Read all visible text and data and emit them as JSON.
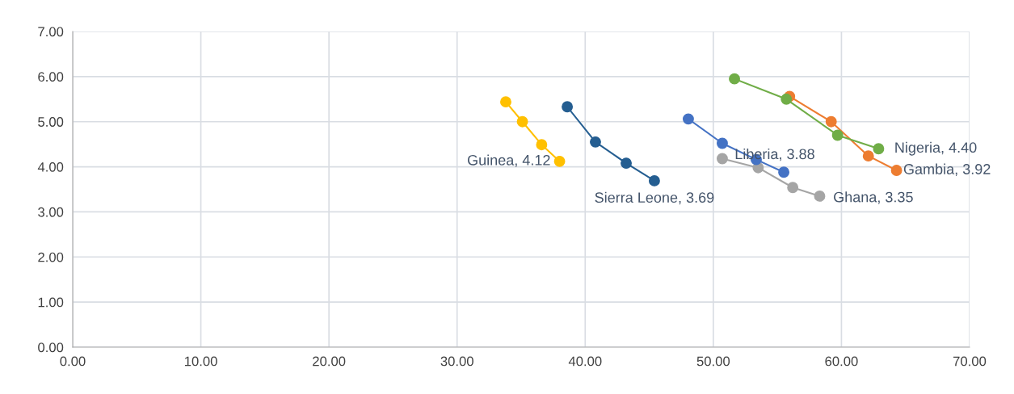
{
  "chart_data": {
    "type": "line",
    "marker": "circle",
    "grid": true,
    "xlim": [
      0,
      70
    ],
    "ylim": [
      0,
      7
    ],
    "xticks": [
      {
        "value": 0,
        "label": "0.00"
      },
      {
        "value": 10,
        "label": "10.00"
      },
      {
        "value": 20,
        "label": "20.00"
      },
      {
        "value": 30,
        "label": "30.00"
      },
      {
        "value": 40,
        "label": "40.00"
      },
      {
        "value": 50,
        "label": "50.00"
      },
      {
        "value": 60,
        "label": "60.00"
      },
      {
        "value": 70,
        "label": "70.00"
      }
    ],
    "yticks": [
      {
        "value": 0,
        "label": "0.00"
      },
      {
        "value": 1,
        "label": "1.00"
      },
      {
        "value": 2,
        "label": "2.00"
      },
      {
        "value": 3,
        "label": "3.00"
      },
      {
        "value": 4,
        "label": "4.00"
      },
      {
        "value": 5,
        "label": "5.00"
      },
      {
        "value": 6,
        "label": "6.00"
      },
      {
        "value": 7,
        "label": "7.00"
      }
    ],
    "series": [
      {
        "color": "#ffc000",
        "x": [
          33.8,
          35.1,
          36.6,
          38.0
        ],
        "values": [
          5.44,
          5.0,
          4.49,
          4.12
        ],
        "value_labels": [
          null,
          null,
          null,
          "Guinea, 4.12"
        ]
      },
      {
        "color": "#255e91",
        "x": [
          38.6,
          40.8,
          43.2,
          45.4
        ],
        "values": [
          5.33,
          4.55,
          4.08,
          3.69
        ],
        "value_labels": [
          null,
          null,
          null,
          "Sierra Leone, 3.69"
        ]
      },
      {
        "color": "#4472c4",
        "x": [
          48.05,
          50.7,
          53.35,
          55.5
        ],
        "values": [
          5.06,
          4.52,
          4.16,
          3.88
        ],
        "value_labels": [
          null,
          null,
          null,
          "Liberia, 3.88"
        ]
      },
      {
        "color": "#a5a5a5",
        "x": [
          50.7,
          53.5,
          56.2,
          58.3
        ],
        "values": [
          4.18,
          3.98,
          3.54,
          3.35
        ],
        "value_labels": [
          null,
          null,
          null,
          "Ghana, 3.35"
        ]
      },
      {
        "color": "#70ad47",
        "x": [
          51.65,
          55.7,
          59.7,
          62.9
        ],
        "values": [
          5.95,
          5.5,
          4.7,
          4.4
        ],
        "value_labels": [
          null,
          null,
          null,
          "Nigeria, 4.40"
        ]
      },
      {
        "color": "#ed7d31",
        "x": [
          55.95,
          59.2,
          62.1,
          64.3
        ],
        "values": [
          5.56,
          5.0,
          4.24,
          3.92
        ],
        "value_labels": [
          null,
          null,
          null,
          "Gambia, 3.92"
        ]
      }
    ]
  }
}
